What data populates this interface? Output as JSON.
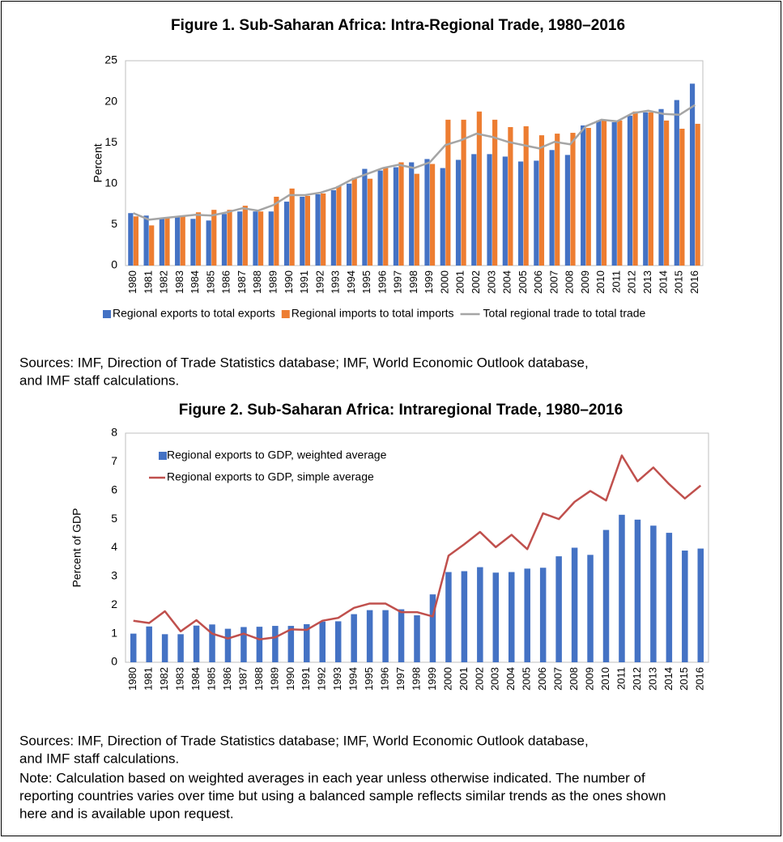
{
  "chart_data": [
    {
      "type": "bar",
      "title": "Figure 1. Sub-Saharan Africa: Intra-Regional Trade, 1980–2016",
      "y_label": "Percent",
      "categories": [
        "1980",
        "1981",
        "1982",
        "1983",
        "1984",
        "1985",
        "1986",
        "1987",
        "1988",
        "1989",
        "1990",
        "1991",
        "1992",
        "1993",
        "1994",
        "1995",
        "1996",
        "1997",
        "1998",
        "1999",
        "2000",
        "2001",
        "2002",
        "2003",
        "2004",
        "2005",
        "2006",
        "2007",
        "2008",
        "2009",
        "2010",
        "2011",
        "2012",
        "2013",
        "2014",
        "2015",
        "2016"
      ],
      "series": [
        {
          "name": "Regional exports to total exports",
          "type": "bar",
          "color": "#4472c4",
          "values": [
            6.4,
            6.1,
            5.7,
            5.9,
            5.7,
            5.5,
            6.3,
            6.6,
            6.6,
            6.6,
            7.8,
            8.4,
            8.7,
            9.2,
            10.0,
            11.8,
            11.6,
            12.0,
            12.6,
            13.0,
            11.9,
            12.9,
            13.6,
            13.6,
            13.3,
            12.7,
            12.8,
            14.1,
            13.5,
            17.1,
            17.7,
            17.5,
            18.3,
            18.7,
            19.1,
            20.2,
            22.2
          ]
        },
        {
          "name": "Regional imports to total imports",
          "type": "bar",
          "color": "#ed7d31",
          "values": [
            6.0,
            4.9,
            5.9,
            6.1,
            6.5,
            6.8,
            6.8,
            7.3,
            6.6,
            8.4,
            9.4,
            8.5,
            8.8,
            9.7,
            10.7,
            10.6,
            12.0,
            12.6,
            11.2,
            12.4,
            17.8,
            17.8,
            18.8,
            17.8,
            16.9,
            17.0,
            15.9,
            16.1,
            16.2,
            16.8,
            17.7,
            17.7,
            18.8,
            18.7,
            17.7,
            16.7,
            17.3
          ]
        },
        {
          "name": "Total regional trade to total trade",
          "type": "line",
          "color": "#a5a5a5",
          "values": [
            6.4,
            5.6,
            5.8,
            6.0,
            6.2,
            6.1,
            6.5,
            7.0,
            6.7,
            7.4,
            8.6,
            8.6,
            8.9,
            9.5,
            10.5,
            11.2,
            11.9,
            12.3,
            11.9,
            12.6,
            14.7,
            15.3,
            16.1,
            15.7,
            15.1,
            14.7,
            14.3,
            15.1,
            14.8,
            17.0,
            17.8,
            17.6,
            18.6,
            18.9,
            18.5,
            18.4,
            19.6
          ]
        }
      ],
      "ylim": [
        0,
        25
      ],
      "yticks": [
        0,
        5,
        10,
        15,
        20,
        25
      ],
      "grid": false,
      "legend": "bottom",
      "sources": [
        "Sources: IMF, Direction of Trade Statistics database; IMF, World Economic Outlook database,",
        "and IMF staff calculations."
      ]
    },
    {
      "type": "bar",
      "title": "Figure 2. Sub-Saharan Africa: Intraregional Trade, 1980–2016",
      "y_label": "Percent of GDP",
      "categories": [
        "1980",
        "1981",
        "1982",
        "1983",
        "1984",
        "1985",
        "1986",
        "1987",
        "1988",
        "1989",
        "1990",
        "1991",
        "1992",
        "1993",
        "1994",
        "1995",
        "1996",
        "1997",
        "1998",
        "1999",
        "2000",
        "2001",
        "2002",
        "2003",
        "2004",
        "2005",
        "2006",
        "2007",
        "2008",
        "2009",
        "2010",
        "2011",
        "2012",
        "2013",
        "2014",
        "2015",
        "2016"
      ],
      "series": [
        {
          "name": "Regional exports to GDP, weighted average",
          "type": "bar",
          "color": "#4472c4",
          "values": [
            1.0,
            1.25,
            0.98,
            0.98,
            1.28,
            1.32,
            1.17,
            1.23,
            1.24,
            1.27,
            1.27,
            1.33,
            1.42,
            1.43,
            1.68,
            1.82,
            1.82,
            1.85,
            1.64,
            2.37,
            3.15,
            3.18,
            3.32,
            3.13,
            3.15,
            3.27,
            3.3,
            3.7,
            4.0,
            3.75,
            4.62,
            5.15,
            4.98,
            4.77,
            4.52,
            3.9,
            3.97
          ]
        },
        {
          "name": "Regional exports to GDP, simple average",
          "type": "line",
          "color": "#c0504d",
          "values": [
            1.45,
            1.37,
            1.78,
            1.08,
            1.47,
            1.0,
            0.83,
            1.0,
            0.8,
            0.87,
            1.15,
            1.13,
            1.45,
            1.55,
            1.9,
            2.05,
            2.05,
            1.75,
            1.75,
            1.6,
            3.72,
            4.12,
            4.55,
            4.02,
            4.45,
            3.95,
            5.2,
            5.0,
            5.6,
            5.98,
            5.65,
            7.22,
            6.32,
            6.8,
            6.22,
            5.72,
            6.17
          ]
        }
      ],
      "ylim": [
        0,
        8
      ],
      "yticks": [
        0,
        1,
        2,
        3,
        4,
        5,
        6,
        7,
        8
      ],
      "grid": false,
      "legend": "top-left",
      "sources": [
        "Sources: IMF, Direction of Trade Statistics database; IMF, World Economic Outlook database,",
        "and IMF staff calculations."
      ],
      "note": [
        "Note: Calculation based on weighted averages in each year unless otherwise indicated. The number of",
        "reporting countries varies over time but using a balanced sample reflects similar trends as the ones shown",
        "here and is available upon request."
      ]
    }
  ]
}
